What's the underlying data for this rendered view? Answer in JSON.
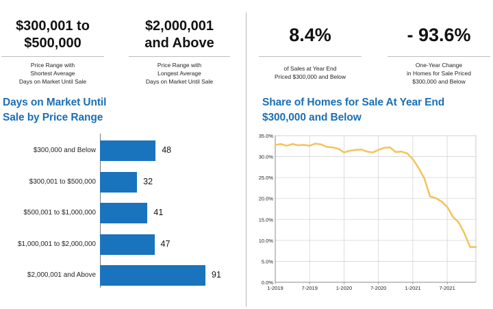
{
  "stats": [
    {
      "value_line1": "$300,001 to",
      "value_line2": "$500,000",
      "desc_line1": "Price Range with",
      "desc_line2": "Shortest Average",
      "desc_line3": "Days on Market Until Sale"
    },
    {
      "value_line1": "$2,000,001",
      "value_line2": "and Above",
      "desc_line1": "Price Range with",
      "desc_line2": "Longest Average",
      "desc_line3": "Days on Market Until Sale"
    },
    {
      "value": "8.4%",
      "desc_line1": "of Sales at Year End",
      "desc_line2": "Priced $300,000 and Below"
    },
    {
      "value": "- 93.6%",
      "desc_line1": "One-Year Change",
      "desc_line2": "in Homes for Sale Priced",
      "desc_line3": "$300,000 and Below"
    }
  ],
  "left_title_line1": "Days on Market Until",
  "left_title_line2": "Sale by Price Range",
  "right_title_line1": "Share of Homes for Sale At Year End",
  "right_title_line2": "$300,000 and Below",
  "colors": {
    "bar": "#1a73bd",
    "line": "#f4c45e",
    "title": "#1a6fb5"
  },
  "chart_data": [
    {
      "type": "bar",
      "orientation": "horizontal",
      "title": "Days on Market Until Sale by Price Range",
      "categories": [
        "$300,000 and Below",
        "$300,001 to $500,000",
        "$500,001 to $1,000,000",
        "$1,000,001 to $2,000,000",
        "$2,000,001 and Above"
      ],
      "values": [
        48,
        32,
        41,
        47,
        91
      ]
    },
    {
      "type": "line",
      "title": "Share of Homes for Sale At Year End $300,000 and Below",
      "ylim": [
        0,
        35
      ],
      "yticks": [
        "0.0%",
        "5.0%",
        "10.0%",
        "15.0%",
        "20.0%",
        "25.0%",
        "30.0%",
        "35.0%"
      ],
      "xticks": [
        "1-2019",
        "7-2019",
        "1-2020",
        "7-2020",
        "1-2021",
        "7-2021"
      ],
      "xlim": [
        0,
        35
      ],
      "grid": true,
      "x": [
        0,
        1,
        2,
        3,
        4,
        5,
        6,
        7,
        8,
        9,
        10,
        11,
        12,
        13,
        14,
        15,
        16,
        17,
        18,
        19,
        20,
        21,
        22,
        23,
        24,
        25,
        26,
        27,
        28,
        29,
        30,
        31,
        32,
        33,
        34,
        35
      ],
      "y": [
        32.8,
        33.0,
        32.6,
        33.0,
        32.7,
        32.8,
        32.6,
        33.1,
        32.9,
        32.3,
        32.2,
        31.9,
        31.0,
        31.4,
        31.6,
        31.7,
        31.2,
        31.0,
        31.6,
        32.1,
        32.2,
        31.1,
        31.2,
        30.8,
        29.4,
        27.3,
        24.8,
        20.5,
        20.1,
        19.3,
        18.0,
        15.6,
        14.3,
        11.7,
        8.4,
        8.4
      ]
    }
  ]
}
